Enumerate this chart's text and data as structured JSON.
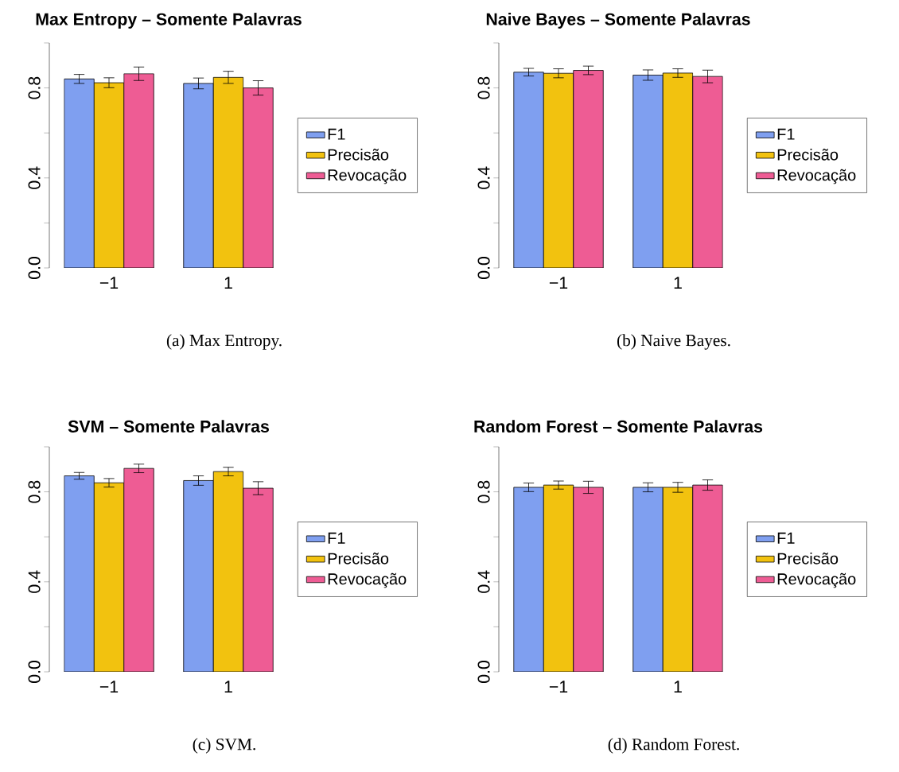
{
  "chart_data": [
    {
      "type": "bar",
      "title": "Max Entropy – Somente Palavras",
      "categories": [
        "−1",
        "1"
      ],
      "ylim": [
        0,
        1
      ],
      "yticks": [
        {
          "value": 0,
          "label": "0.0"
        },
        {
          "value": 0.2,
          "label": null
        },
        {
          "value": 0.4,
          "label": "0.4"
        },
        {
          "value": 0.6,
          "label": null
        },
        {
          "value": 0.8,
          "label": "0.8"
        },
        {
          "value": 1.0,
          "label": null
        }
      ],
      "legend": "right",
      "annotations": [
        "(a) Max Entropy."
      ],
      "series": [
        {
          "name": "F1",
          "color": "#7f9ff0",
          "values": [
            0.84,
            0.82
          ],
          "errors": [
            0.02,
            0.024
          ]
        },
        {
          "name": "Precisão",
          "color": "#f2c20f",
          "values": [
            0.823,
            0.847
          ],
          "errors": [
            0.022,
            0.027
          ]
        },
        {
          "name": "Revocação",
          "color": "#ee5c94",
          "values": [
            0.863,
            0.8
          ],
          "errors": [
            0.03,
            0.032
          ]
        }
      ]
    },
    {
      "type": "bar",
      "title": "Naive Bayes – Somente Palavras",
      "categories": [
        "−1",
        "1"
      ],
      "ylim": [
        0,
        1
      ],
      "yticks": [
        {
          "value": 0,
          "label": "0.0"
        },
        {
          "value": 0.2,
          "label": null
        },
        {
          "value": 0.4,
          "label": "0.4"
        },
        {
          "value": 0.6,
          "label": null
        },
        {
          "value": 0.8,
          "label": "0.8"
        },
        {
          "value": 1.0,
          "label": null
        }
      ],
      "legend": "right",
      "annotations": [
        "(b) Naive Bayes."
      ],
      "series": [
        {
          "name": "F1",
          "color": "#7f9ff0",
          "values": [
            0.87,
            0.857
          ],
          "errors": [
            0.017,
            0.023
          ]
        },
        {
          "name": "Precisão",
          "color": "#f2c20f",
          "values": [
            0.865,
            0.866
          ],
          "errors": [
            0.02,
            0.019
          ]
        },
        {
          "name": "Revocação",
          "color": "#ee5c94",
          "values": [
            0.878,
            0.851
          ],
          "errors": [
            0.019,
            0.028
          ]
        }
      ]
    },
    {
      "type": "bar",
      "title": "SVM – Somente Palavras",
      "categories": [
        "−1",
        "1"
      ],
      "ylim": [
        0,
        1
      ],
      "yticks": [
        {
          "value": 0,
          "label": "0.0"
        },
        {
          "value": 0.2,
          "label": null
        },
        {
          "value": 0.4,
          "label": "0.4"
        },
        {
          "value": 0.6,
          "label": null
        },
        {
          "value": 0.8,
          "label": "0.8"
        },
        {
          "value": 1.0,
          "label": null
        }
      ],
      "legend": "right",
      "annotations": [
        "(c) SVM."
      ],
      "series": [
        {
          "name": "F1",
          "color": "#7f9ff0",
          "values": [
            0.871,
            0.85
          ],
          "errors": [
            0.015,
            0.021
          ]
        },
        {
          "name": "Precisão",
          "color": "#f2c20f",
          "values": [
            0.84,
            0.89
          ],
          "errors": [
            0.019,
            0.019
          ]
        },
        {
          "name": "Revocação",
          "color": "#ee5c94",
          "values": [
            0.904,
            0.816
          ],
          "errors": [
            0.019,
            0.029
          ]
        }
      ]
    },
    {
      "type": "bar",
      "title": "Random Forest – Somente Palavras",
      "categories": [
        "−1",
        "1"
      ],
      "ylim": [
        0,
        1
      ],
      "yticks": [
        {
          "value": 0,
          "label": "0.0"
        },
        {
          "value": 0.2,
          "label": null
        },
        {
          "value": 0.4,
          "label": "0.4"
        },
        {
          "value": 0.6,
          "label": null
        },
        {
          "value": 0.8,
          "label": "0.8"
        },
        {
          "value": 1.0,
          "label": null
        }
      ],
      "legend": "right",
      "annotations": [
        "(d) Random Forest."
      ],
      "series": [
        {
          "name": "F1",
          "color": "#7f9ff0",
          "values": [
            0.82,
            0.82
          ],
          "errors": [
            0.019,
            0.02
          ]
        },
        {
          "name": "Precisão",
          "color": "#f2c20f",
          "values": [
            0.83,
            0.82
          ],
          "errors": [
            0.018,
            0.022
          ]
        },
        {
          "name": "Revocação",
          "color": "#ee5c94",
          "values": [
            0.82,
            0.83
          ],
          "errors": [
            0.027,
            0.023
          ]
        }
      ]
    }
  ]
}
